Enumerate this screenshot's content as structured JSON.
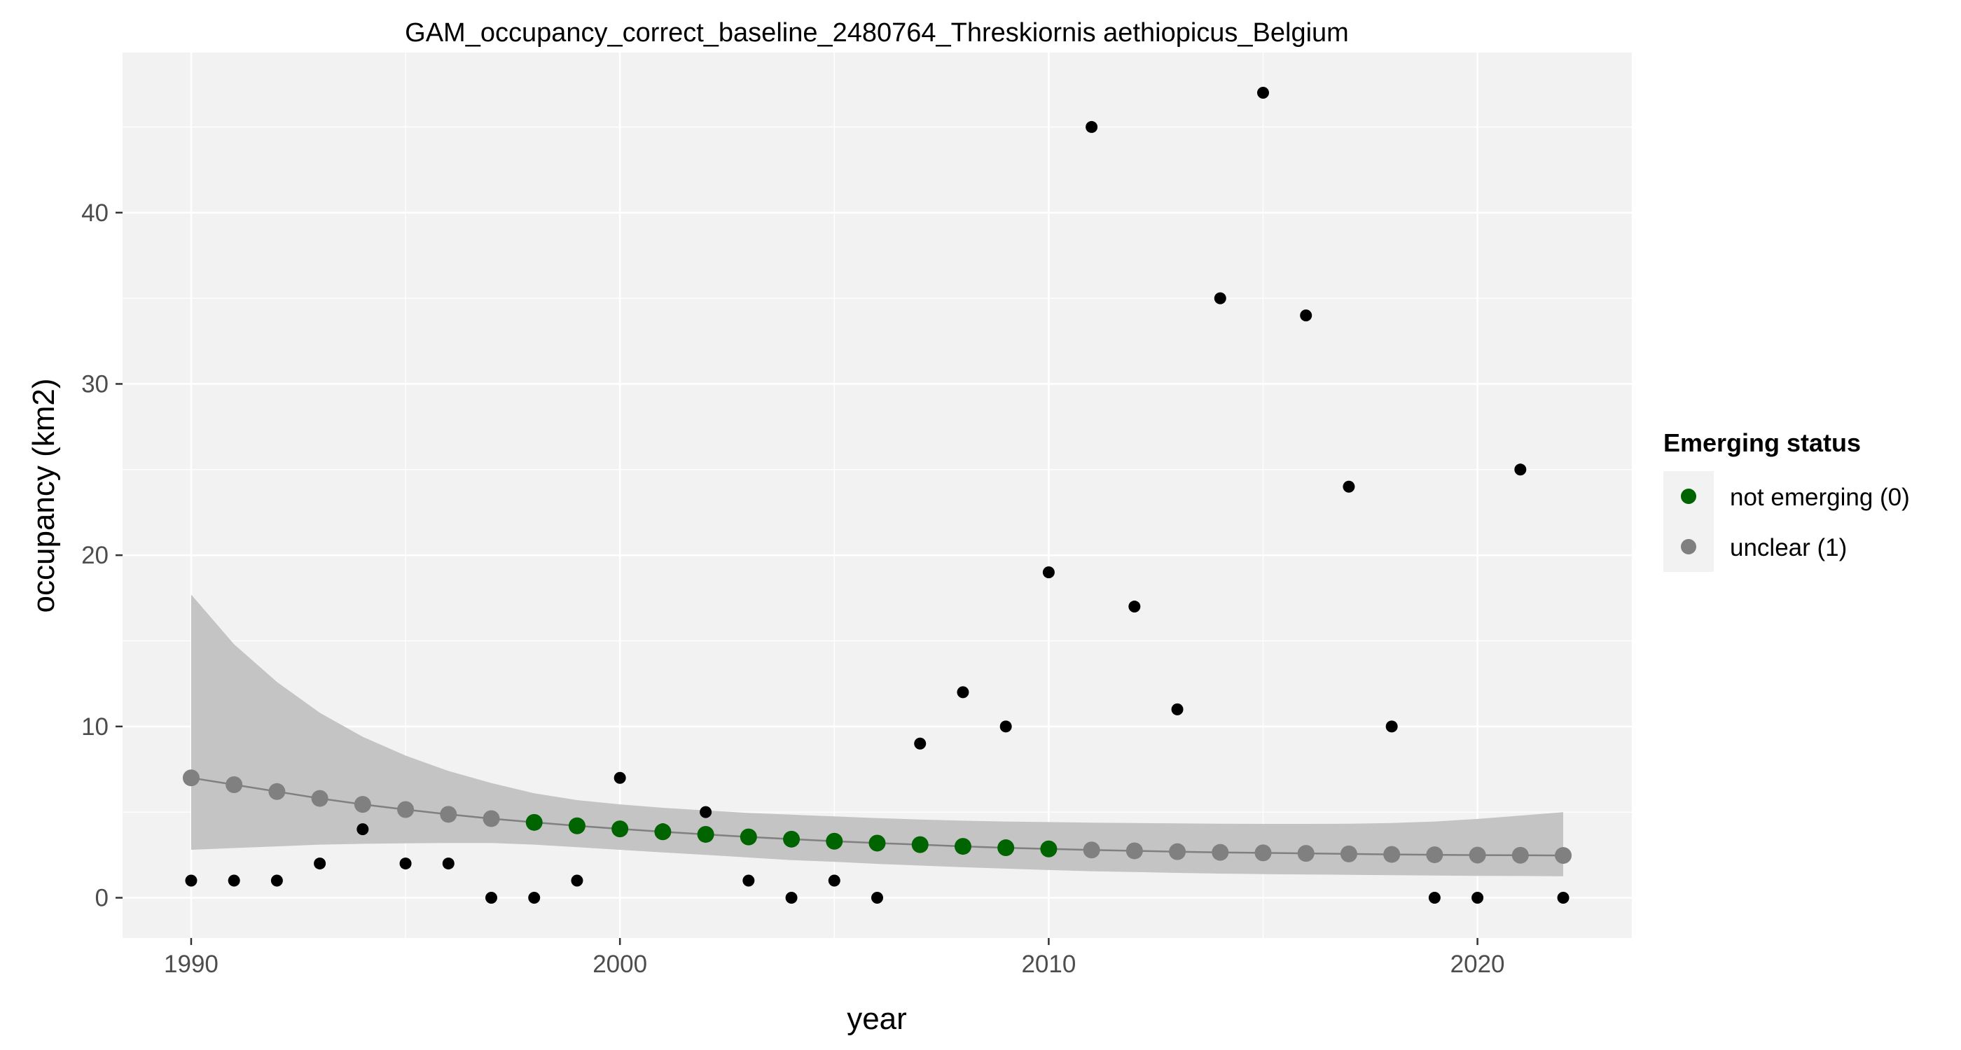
{
  "chart_data": {
    "type": "scatter",
    "title": "GAM_occupancy_correct_baseline_2480764_Threskiornis aethiopicus_Belgium",
    "xlabel": "year",
    "ylabel": "occupancy (km2)",
    "xlim": [
      1988.4,
      2023.6
    ],
    "ylim": [
      -2.35,
      49.35
    ],
    "x_ticks": [
      1990,
      2000,
      2010,
      2020
    ],
    "x_tick_labels": [
      "1990",
      "2000",
      "2010",
      "2020"
    ],
    "y_ticks": [
      0,
      10,
      20,
      30,
      40
    ],
    "y_tick_labels": [
      "0",
      "10",
      "20",
      "30",
      "40"
    ],
    "grid": true,
    "legend": {
      "title": "Emerging status",
      "position": "right",
      "entries": [
        {
          "label": "not emerging (0)",
          "color": "#006400"
        },
        {
          "label": "unclear (1)",
          "color": "#808080"
        }
      ]
    },
    "observed": {
      "color": "#000000",
      "x": [
        1990,
        1991,
        1992,
        1993,
        1994,
        1995,
        1996,
        1997,
        1998,
        1999,
        2000,
        2001,
        2002,
        2003,
        2004,
        2005,
        2006,
        2007,
        2008,
        2009,
        2010,
        2011,
        2012,
        2013,
        2014,
        2015,
        2016,
        2017,
        2018,
        2019,
        2020,
        2021,
        2022
      ],
      "y": [
        1,
        1,
        1,
        2,
        4,
        2,
        2,
        0,
        0,
        1,
        7,
        4,
        5,
        1,
        0,
        1,
        0,
        9,
        12,
        10,
        19,
        45,
        17,
        11,
        35,
        47,
        34,
        24,
        10,
        0,
        0,
        25,
        0
      ]
    },
    "fit": {
      "line_color": "#808080",
      "band_color": "#c4c4c4",
      "x": [
        1990,
        1991,
        1992,
        1993,
        1994,
        1995,
        1996,
        1997,
        1998,
        1999,
        2000,
        2001,
        2002,
        2003,
        2004,
        2005,
        2006,
        2007,
        2008,
        2009,
        2010,
        2011,
        2012,
        2013,
        2014,
        2015,
        2016,
        2017,
        2018,
        2019,
        2020,
        2021,
        2022
      ],
      "y": [
        7.0,
        6.6,
        6.2,
        5.8,
        5.45,
        5.15,
        4.87,
        4.62,
        4.4,
        4.2,
        4.02,
        3.85,
        3.7,
        3.55,
        3.42,
        3.3,
        3.19,
        3.1,
        3.0,
        2.92,
        2.85,
        2.79,
        2.74,
        2.69,
        2.65,
        2.62,
        2.59,
        2.56,
        2.53,
        2.51,
        2.49,
        2.48,
        2.47
      ],
      "lower": [
        2.8,
        2.9,
        3.0,
        3.1,
        3.15,
        3.18,
        3.2,
        3.2,
        3.1,
        2.95,
        2.8,
        2.65,
        2.5,
        2.35,
        2.2,
        2.1,
        1.98,
        1.88,
        1.78,
        1.7,
        1.62,
        1.55,
        1.5,
        1.45,
        1.41,
        1.38,
        1.36,
        1.34,
        1.32,
        1.3,
        1.28,
        1.27,
        1.25
      ],
      "upper": [
        17.7,
        14.8,
        12.6,
        10.8,
        9.4,
        8.3,
        7.4,
        6.7,
        6.1,
        5.7,
        5.45,
        5.25,
        5.1,
        4.95,
        4.85,
        4.75,
        4.65,
        4.57,
        4.5,
        4.45,
        4.42,
        4.38,
        4.36,
        4.34,
        4.32,
        4.31,
        4.31,
        4.32,
        4.36,
        4.45,
        4.6,
        4.8,
        5.0
      ],
      "status": [
        1,
        1,
        1,
        1,
        1,
        1,
        1,
        1,
        0,
        0,
        0,
        0,
        0,
        0,
        0,
        0,
        0,
        0,
        0,
        0,
        0,
        1,
        1,
        1,
        1,
        1,
        1,
        1,
        1,
        1,
        1,
        1,
        1
      ]
    }
  }
}
